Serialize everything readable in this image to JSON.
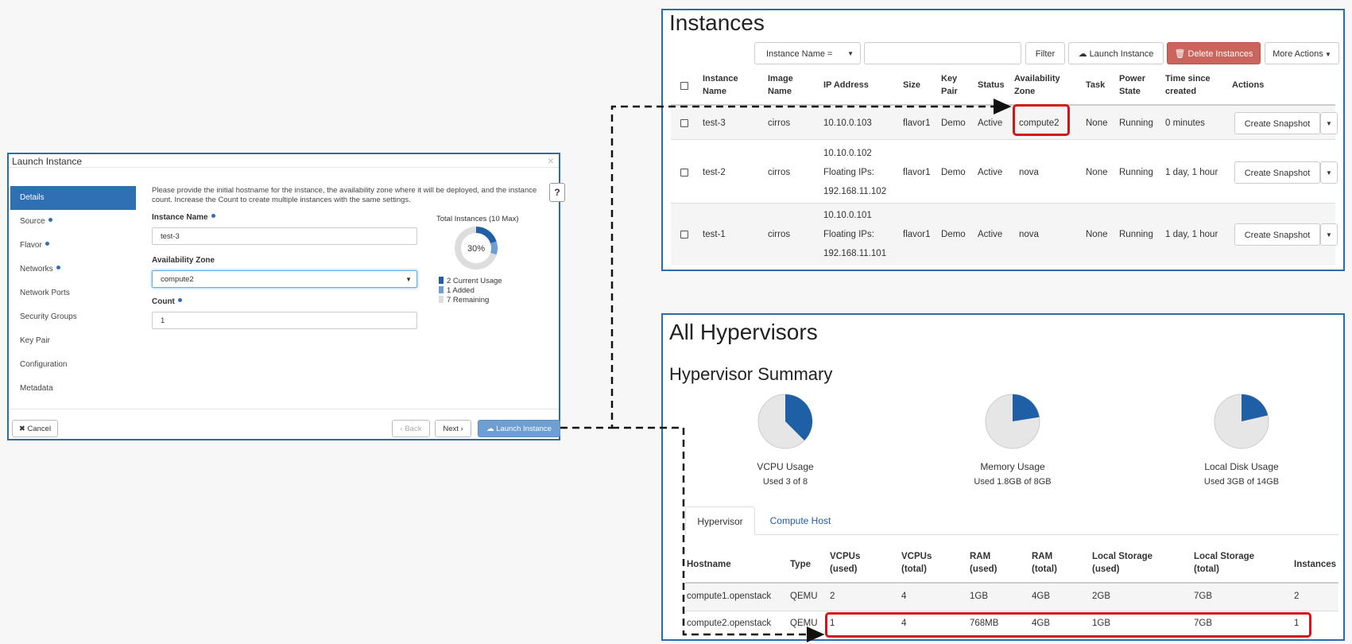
{
  "dialog": {
    "title": "Launch Instance",
    "close_glyph": "×",
    "nav": [
      {
        "label": "Details",
        "required": false,
        "active": true
      },
      {
        "label": "Source",
        "required": true,
        "active": false
      },
      {
        "label": "Flavor",
        "required": true,
        "active": false
      },
      {
        "label": "Networks",
        "required": true,
        "active": false
      },
      {
        "label": "Network Ports",
        "required": false,
        "active": false
      },
      {
        "label": "Security Groups",
        "required": false,
        "active": false
      },
      {
        "label": "Key Pair",
        "required": false,
        "active": false
      },
      {
        "label": "Configuration",
        "required": false,
        "active": false
      },
      {
        "label": "Metadata",
        "required": false,
        "active": false
      }
    ],
    "help_text": "Please provide the initial hostname for the instance, the availability zone where it will be deployed, and the instance count. Increase the Count to create multiple instances with the same settings.",
    "help_glyph": "?",
    "instance_name_label": "Instance Name",
    "instance_name_value": "test-3",
    "availability_zone_label": "Availability Zone",
    "availability_zone_value": "compute2",
    "count_label": "Count",
    "count_value": "1",
    "quota": {
      "title": "Total Instances (10 Max)",
      "percent_label": "30%",
      "current_fraction": 0.2,
      "added_fraction": 0.1,
      "legend": [
        "2 Current Usage",
        "1 Added",
        "7 Remaining"
      ],
      "colors": [
        "#1f5fa6",
        "#6e9fd2",
        "#dddddd"
      ]
    },
    "buttons": {
      "cancel": "✖ Cancel",
      "back": "‹ Back",
      "next": "Next ›",
      "launch": "Launch Instance"
    }
  },
  "instances": {
    "title": "Instances",
    "filter_select": "Instance Name =",
    "filter_button": "Filter",
    "launch_button": "Launch Instance",
    "delete_button": "Delete Instances",
    "more_button": "More Actions",
    "columns": [
      "Instance Name",
      "Image Name",
      "IP Address",
      "Size",
      "Key Pair",
      "Status",
      "Availability Zone",
      "Task",
      "Power State",
      "Time since created",
      "Actions"
    ],
    "rows": [
      {
        "name": "test-3",
        "image": "cirros",
        "ip": [
          "10.10.0.103"
        ],
        "size": "flavor1",
        "key": "Demo",
        "status": "Active",
        "zone": "compute2",
        "task": "None",
        "power": "Running",
        "time": "0 minutes",
        "action": "Create Snapshot"
      },
      {
        "name": "test-2",
        "image": "cirros",
        "ip": [
          "10.10.0.102",
          "Floating IPs:",
          "192.168.11.102"
        ],
        "size": "flavor1",
        "key": "Demo",
        "status": "Active",
        "zone": "nova",
        "task": "None",
        "power": "Running",
        "time": "1 day, 1 hour",
        "action": "Create Snapshot"
      },
      {
        "name": "test-1",
        "image": "cirros",
        "ip": [
          "10.10.0.101",
          "Floating IPs:",
          "192.168.11.101"
        ],
        "size": "flavor1",
        "key": "Demo",
        "status": "Active",
        "zone": "nova",
        "task": "None",
        "power": "Running",
        "time": "1 day, 1 hour",
        "action": "Create Snapshot"
      }
    ]
  },
  "hypervisors": {
    "title": "All Hypervisors",
    "summary_title": "Hypervisor Summary",
    "pies": [
      {
        "label": "VCPU Usage",
        "sub": "Used 3 of 8",
        "fraction": 0.375
      },
      {
        "label": "Memory Usage",
        "sub": "Used 1.8GB of 8GB",
        "fraction": 0.225
      },
      {
        "label": "Local Disk Usage",
        "sub": "Used 3GB of 14GB",
        "fraction": 0.214
      }
    ],
    "tabs": [
      "Hypervisor",
      "Compute Host"
    ],
    "columns": [
      "Hostname",
      "Type",
      "VCPUs (used)",
      "VCPUs (total)",
      "RAM (used)",
      "RAM (total)",
      "Local Storage (used)",
      "Local Storage (total)",
      "Instances"
    ],
    "rows": [
      [
        "compute1.openstack",
        "QEMU",
        "2",
        "4",
        "1GB",
        "4GB",
        "2GB",
        "7GB",
        "2"
      ],
      [
        "compute2.openstack",
        "QEMU",
        "1",
        "4",
        "768MB",
        "4GB",
        "1GB",
        "7GB",
        "1"
      ]
    ]
  },
  "colors": {
    "accent": "#2f6fb3",
    "highlight": "#d6121a",
    "danger": "#c9655c",
    "pie_used": "#1f5fa6",
    "pie_free": "#e6e6e6"
  }
}
